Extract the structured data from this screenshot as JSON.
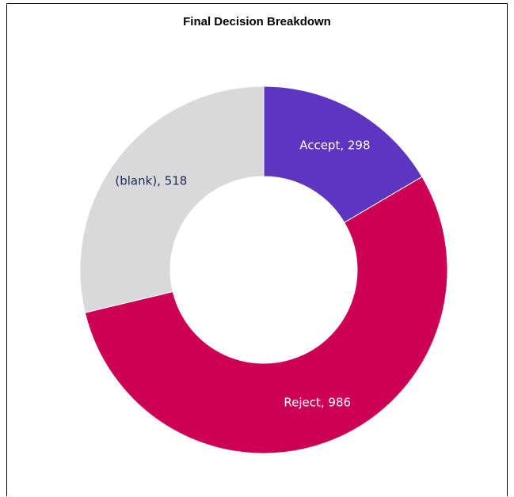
{
  "chart_data": {
    "type": "pie",
    "title": "Final Decision Breakdown",
    "donut": true,
    "slices": [
      {
        "label": "Accept",
        "value": 298,
        "color": "#5e35c0",
        "text_color": "#ffffff",
        "display": "Accept, 298"
      },
      {
        "label": "Reject",
        "value": 986,
        "color": "#cc0055",
        "text_color": "#ffffff",
        "display": "Reject, 986"
      },
      {
        "label": "(blank)",
        "value": 518,
        "color": "#d9d9d9",
        "text_color": "#1a2a5a",
        "display": "(blank), 518"
      }
    ],
    "legend": "none"
  }
}
